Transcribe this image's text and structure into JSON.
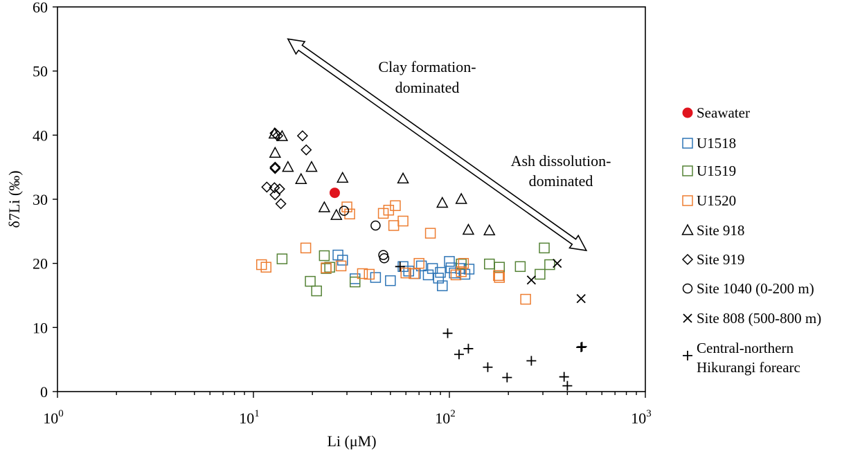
{
  "chart_data": {
    "type": "scatter",
    "xscale": "log",
    "xlim": [
      1,
      1000
    ],
    "ylim": [
      0,
      60
    ],
    "xticks": [
      {
        "value": 1,
        "base": "10",
        "exp": "0"
      },
      {
        "value": 10,
        "base": "10",
        "exp": "1"
      },
      {
        "value": 100,
        "base": "10",
        "exp": "2"
      },
      {
        "value": 1000,
        "base": "10",
        "exp": "3"
      }
    ],
    "yticks": [
      "0",
      "10",
      "20",
      "30",
      "40",
      "50",
      "60"
    ],
    "xlabel": "Li (μM)",
    "ylabel": "δ7Li (‰)",
    "grid": false,
    "legend_position": "right",
    "annotations": [
      {
        "lines": [
          "Clay formation-",
          "dominated"
        ]
      },
      {
        "lines": [
          "Ash dissolution-",
          "dominated"
        ]
      }
    ],
    "arrow": {
      "from": [
        500,
        22
      ],
      "to": [
        15,
        55
      ],
      "double_headed": true
    },
    "series": [
      {
        "name": "Seawater",
        "marker": "filled-circle",
        "color": "#e0141e",
        "points": [
          [
            26,
            31
          ]
        ]
      },
      {
        "name": "U1518",
        "marker": "square",
        "color": "#2e75b6",
        "points": [
          [
            27,
            21.3
          ],
          [
            28.5,
            20.5
          ],
          [
            33,
            17.6
          ],
          [
            42,
            17.8
          ],
          [
            50,
            17.3
          ],
          [
            58,
            19.5
          ],
          [
            62,
            18.8
          ],
          [
            67,
            18.4
          ],
          [
            72,
            19.6
          ],
          [
            78,
            18.2
          ],
          [
            82,
            19.2
          ],
          [
            88,
            17.7
          ],
          [
            90,
            18.6
          ],
          [
            92,
            16.5
          ],
          [
            100,
            20.3
          ],
          [
            102,
            19.3
          ],
          [
            106,
            18.5
          ],
          [
            114,
            19.2
          ],
          [
            120,
            18.3
          ],
          [
            126,
            19.1
          ]
        ]
      },
      {
        "name": "U1519",
        "marker": "square",
        "color": "#548235",
        "points": [
          [
            14,
            20.7
          ],
          [
            19.5,
            17.2
          ],
          [
            21,
            15.7
          ],
          [
            23,
            21.2
          ],
          [
            23.5,
            19.2
          ],
          [
            24.5,
            19.4
          ],
          [
            33,
            17.1
          ],
          [
            115,
            19.9
          ],
          [
            160,
            19.9
          ],
          [
            180,
            19.4
          ],
          [
            230,
            19.5
          ],
          [
            290,
            18.3
          ],
          [
            305,
            22.4
          ],
          [
            325,
            19.8
          ]
        ]
      },
      {
        "name": "U1520",
        "marker": "square",
        "color": "#ed7d31",
        "points": [
          [
            11,
            19.8
          ],
          [
            11.6,
            19.4
          ],
          [
            18.5,
            22.4
          ],
          [
            23.5,
            19.3
          ],
          [
            28,
            19.6
          ],
          [
            30,
            28.8
          ],
          [
            31,
            27.7
          ],
          [
            36,
            18.4
          ],
          [
            39,
            18.3
          ],
          [
            46,
            27.8
          ],
          [
            49,
            28.3
          ],
          [
            52,
            25.9
          ],
          [
            53,
            29.0
          ],
          [
            58,
            26.6
          ],
          [
            60,
            18.5
          ],
          [
            66,
            18.4
          ],
          [
            70,
            20.0
          ],
          [
            80,
            24.7
          ],
          [
            108,
            18.2
          ],
          [
            115,
            18.7
          ],
          [
            118,
            20.0
          ],
          [
            178,
            18.1
          ],
          [
            180,
            17.8
          ],
          [
            245,
            14.4
          ]
        ]
      },
      {
        "name": "Site 918",
        "marker": "triangle",
        "color": "#000000",
        "points": [
          [
            12.8,
            40.2
          ],
          [
            12.9,
            37.2
          ],
          [
            14,
            39.8
          ],
          [
            15,
            35.0
          ],
          [
            17.5,
            33.1
          ],
          [
            19.8,
            35.0
          ],
          [
            23,
            28.7
          ],
          [
            26.5,
            27.5
          ],
          [
            28.5,
            33.3
          ],
          [
            58,
            33.2
          ],
          [
            92,
            29.4
          ],
          [
            115,
            30.0
          ],
          [
            125,
            25.2
          ],
          [
            160,
            25.1
          ]
        ]
      },
      {
        "name": "Site 919",
        "marker": "diamond",
        "color": "#000000",
        "points": [
          [
            12.9,
            40.3
          ],
          [
            13.3,
            39.9
          ],
          [
            17.8,
            39.9
          ],
          [
            18.6,
            37.7
          ],
          [
            12.9,
            34.8
          ],
          [
            12.9,
            35.0
          ],
          [
            11.7,
            31.9
          ],
          [
            12.8,
            31.8
          ],
          [
            13.6,
            31.6
          ],
          [
            12.9,
            30.7
          ],
          [
            13.8,
            29.3
          ]
        ]
      },
      {
        "name": "Site 1040 (0-200 m)",
        "marker": "circle",
        "color": "#000000",
        "points": [
          [
            29,
            28.2
          ],
          [
            42,
            25.9
          ],
          [
            46,
            21.3
          ],
          [
            46.5,
            20.8
          ]
        ]
      },
      {
        "name": "Site 808 (500-800 m)",
        "marker": "x",
        "color": "#000000",
        "points": [
          [
            262,
            17.4
          ],
          [
            355,
            20.0
          ],
          [
            470,
            14.5
          ]
        ]
      },
      {
        "name": "Central-northern\nHikurangi forearc",
        "marker": "plus",
        "color": "#000000",
        "points": [
          [
            56,
            19.5
          ],
          [
            98,
            9.1
          ],
          [
            112,
            5.8
          ],
          [
            125,
            6.7
          ],
          [
            157,
            3.8
          ],
          [
            197,
            2.2
          ],
          [
            262,
            4.8
          ],
          [
            385,
            2.3
          ],
          [
            400,
            0.9
          ],
          [
            470,
            6.9
          ],
          [
            475,
            7.0
          ]
        ]
      }
    ]
  }
}
